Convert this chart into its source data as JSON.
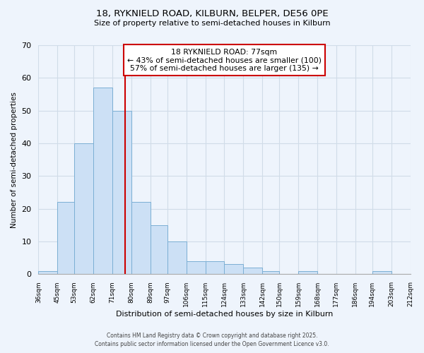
{
  "title_line1": "18, RYKNIELD ROAD, KILBURN, BELPER, DE56 0PE",
  "title_line2": "Size of property relative to semi-detached houses in Kilburn",
  "xlabel": "Distribution of semi-detached houses by size in Kilburn",
  "ylabel": "Number of semi-detached properties",
  "bin_labels": [
    "36sqm",
    "45sqm",
    "53sqm",
    "62sqm",
    "71sqm",
    "80sqm",
    "89sqm",
    "97sqm",
    "106sqm",
    "115sqm",
    "124sqm",
    "133sqm",
    "142sqm",
    "150sqm",
    "159sqm",
    "168sqm",
    "177sqm",
    "186sqm",
    "194sqm",
    "203sqm",
    "212sqm"
  ],
  "bin_edges": [
    36,
    45,
    53,
    62,
    71,
    80,
    89,
    97,
    106,
    115,
    124,
    133,
    142,
    150,
    159,
    168,
    177,
    186,
    194,
    203,
    212
  ],
  "bar_heights": [
    1,
    22,
    40,
    57,
    50,
    22,
    15,
    10,
    4,
    4,
    3,
    2,
    1,
    0,
    1,
    0,
    0,
    0,
    1,
    0
  ],
  "bar_color": "#cce0f5",
  "bar_edge_color": "#7bafd4",
  "property_line_x": 77,
  "property_line_color": "#cc0000",
  "annotation_title": "18 RYKNIELD ROAD: 77sqm",
  "annotation_line2": "← 43% of semi-detached houses are smaller (100)",
  "annotation_line3": "57% of semi-detached houses are larger (135) →",
  "annotation_box_color": "#ffffff",
  "annotation_box_edge": "#cc0000",
  "ylim": [
    0,
    70
  ],
  "yticks": [
    0,
    10,
    20,
    30,
    40,
    50,
    60,
    70
  ],
  "footer_line1": "Contains HM Land Registry data © Crown copyright and database right 2025.",
  "footer_line2": "Contains public sector information licensed under the Open Government Licence v3.0.",
  "bg_color": "#eef4fc",
  "plot_bg_color": "#eef4fc",
  "grid_color": "#d0dce8"
}
